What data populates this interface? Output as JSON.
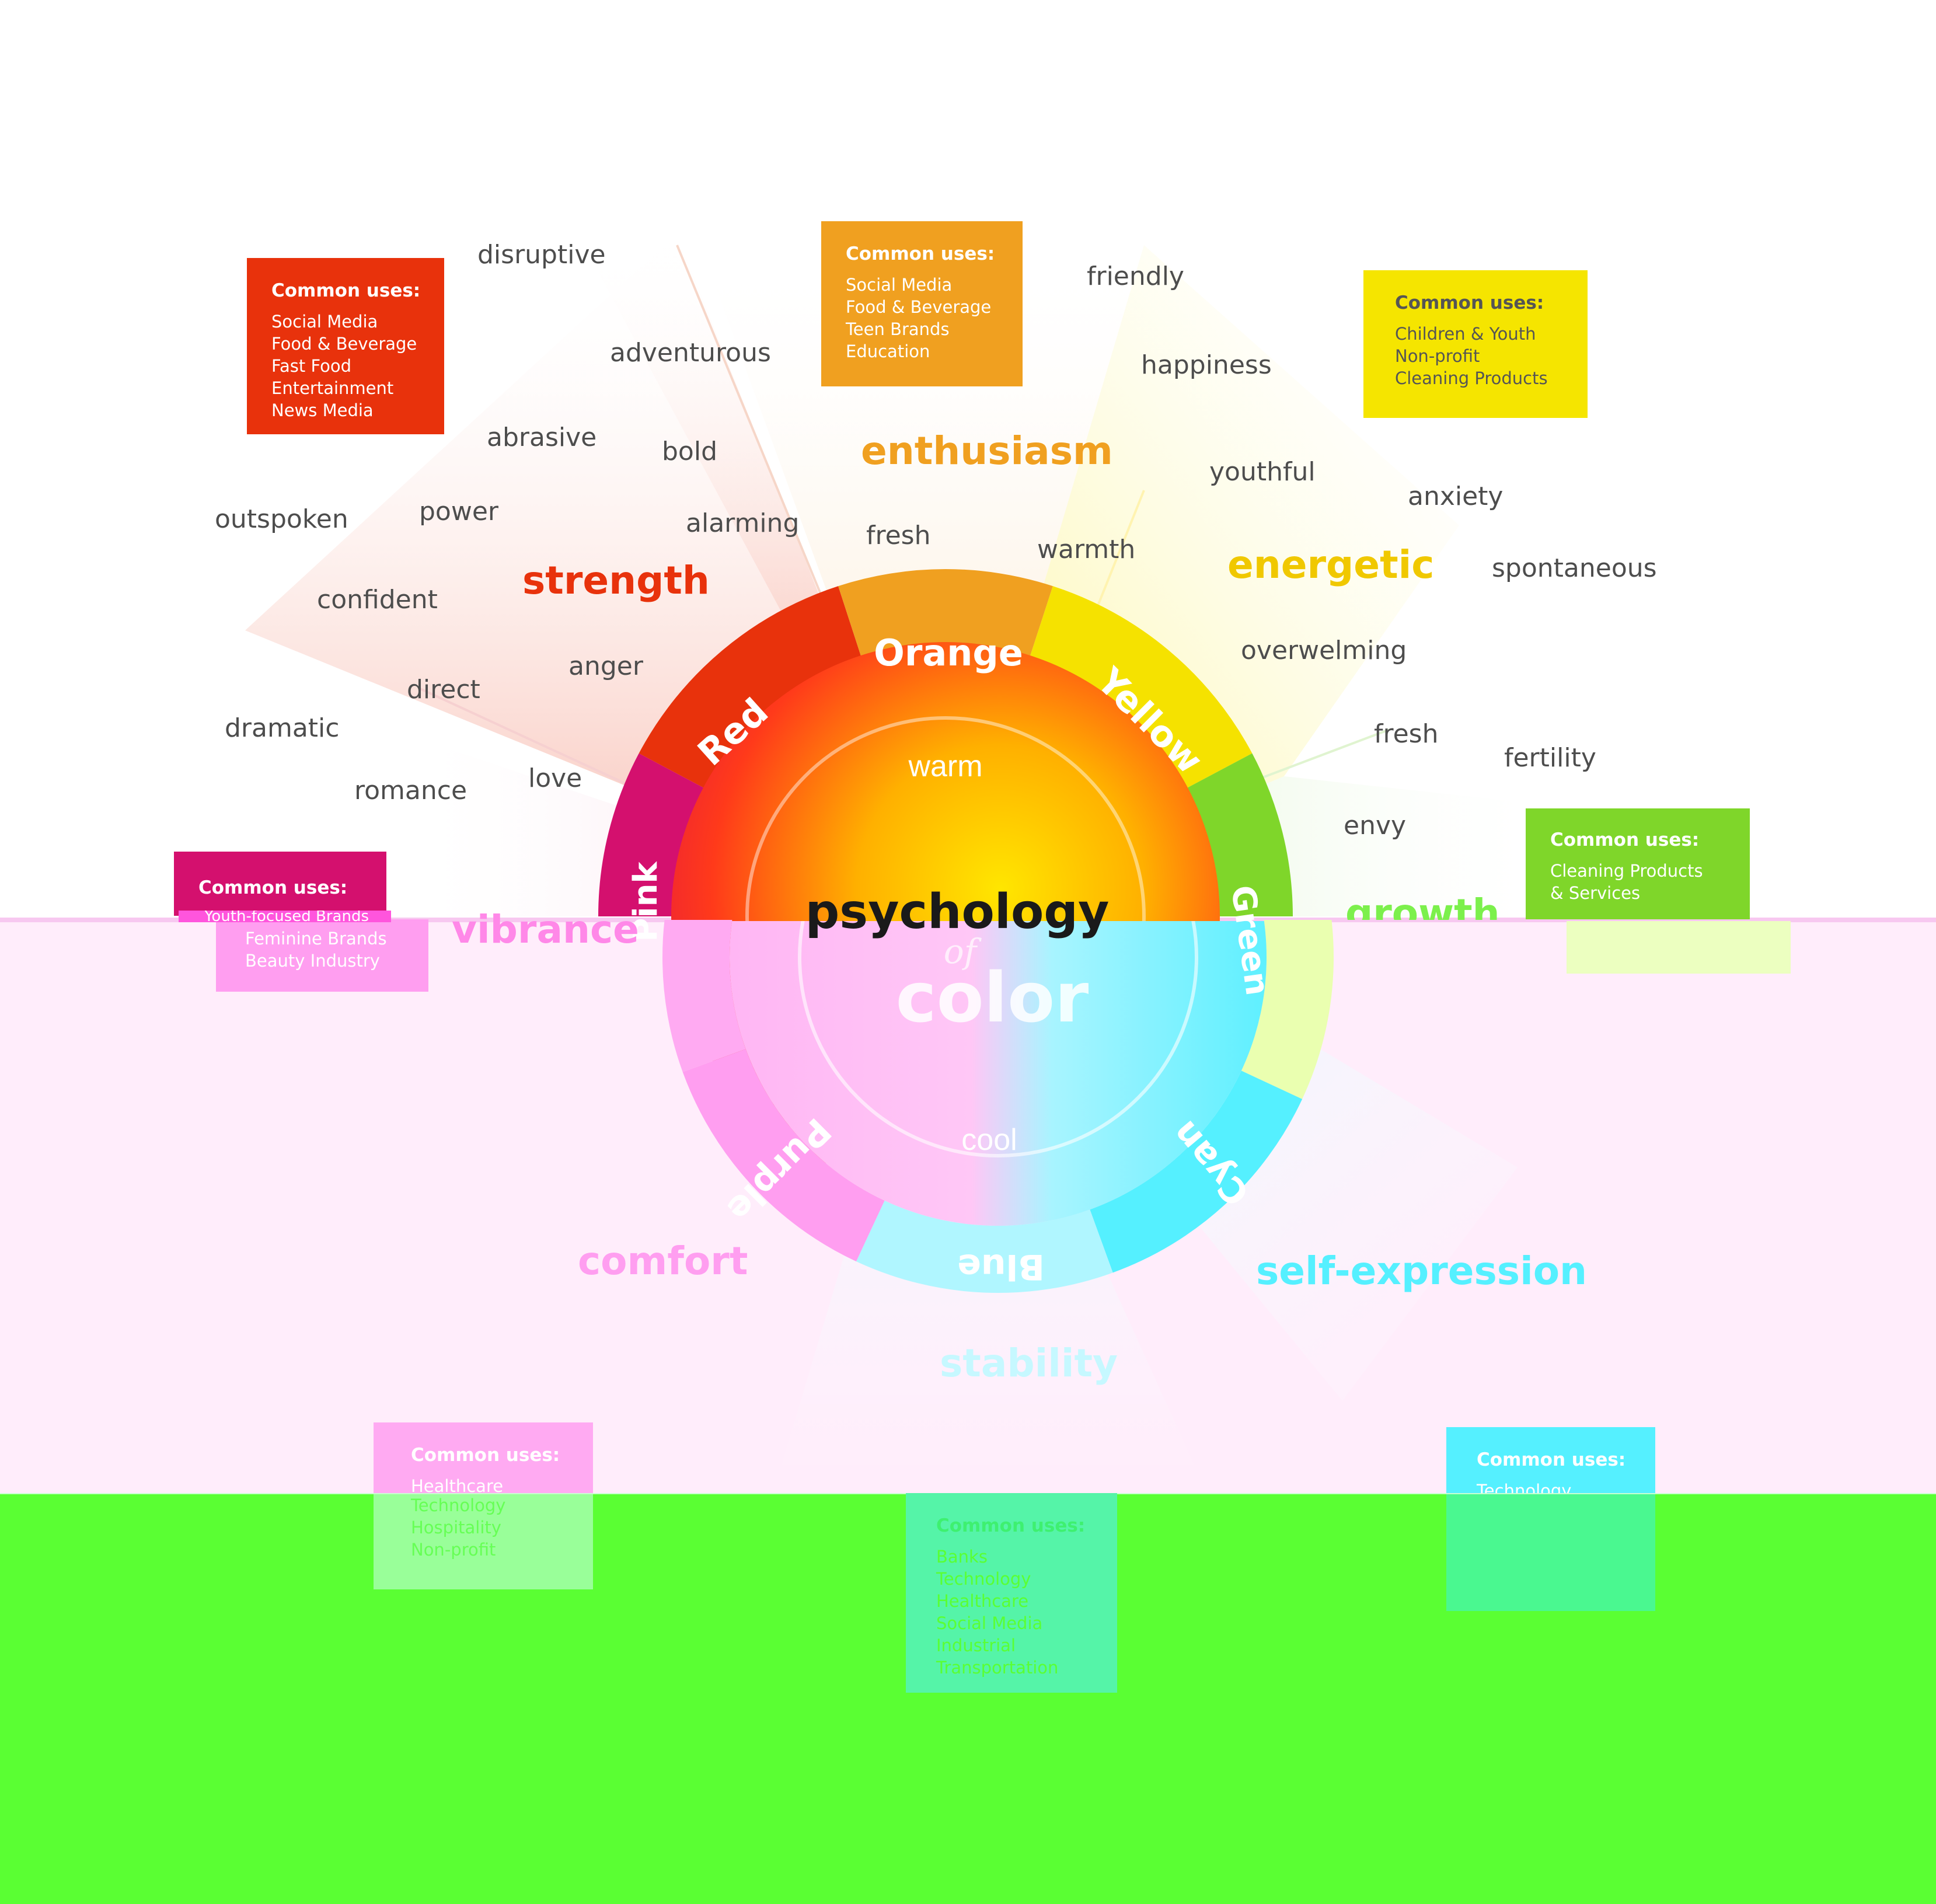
{
  "title": {
    "line1": "psychology",
    "line2": "of",
    "line3": "color"
  },
  "temperature": {
    "warm": "warm",
    "cool": "cool"
  },
  "segments": [
    {
      "label": "Pink",
      "color": "#d4106e"
    },
    {
      "label": "Red",
      "color": "#e8320c"
    },
    {
      "label": "Orange",
      "color": "#f0a020"
    },
    {
      "label": "Yellow",
      "color": "#f5e200"
    },
    {
      "label": "Green",
      "color": "#7fd62a"
    },
    {
      "label": "Cyan",
      "color": "#55f0ff"
    },
    {
      "label": "Blue",
      "color": "#b0f6ff"
    },
    {
      "label": "Purple",
      "color": "#ff9ef0"
    }
  ],
  "keywords": {
    "strength": "strength",
    "enthusiasm": "enthusiasm",
    "energetic": "energetic",
    "growth": "growth",
    "vibrance": "vibrance",
    "comfort": "comfort",
    "stability": "stability",
    "self_expression": "self-expression"
  },
  "words": {
    "disruptive": "disruptive",
    "adventurous": "adventurous",
    "abrasive": "abrasive",
    "bold": "bold",
    "outspoken": "outspoken",
    "power": "power",
    "alarming": "alarming",
    "confident": "confident",
    "anger": "anger",
    "direct": "direct",
    "dramatic": "dramatic",
    "love": "love",
    "romance": "romance",
    "friendly": "friendly",
    "happiness": "happiness",
    "fresh_orange": "fresh",
    "warmth": "warmth",
    "youthful": "youthful",
    "anxiety": "anxiety",
    "spontaneous": "spontaneous",
    "overwelming": "overwelming",
    "fresh_green": "fresh",
    "fertility": "fertility",
    "envy": "envy"
  },
  "uses": {
    "header": "Common uses:",
    "red": [
      "Social Media",
      "Food & Beverage",
      "Fast Food",
      "Entertainment",
      "News Media"
    ],
    "orange": [
      "Social Media",
      "Food & Beverage",
      "Teen Brands",
      "Education"
    ],
    "yellow": [
      "Children & Youth",
      "Non-profit",
      "Cleaning Products"
    ],
    "green": [
      "Cleaning Products",
      "& Services"
    ],
    "pink": [
      "Youth-focused Brands",
      "Feminine Brands",
      "Beauty Industry"
    ],
    "purple": [
      "Healthcare",
      "Technology",
      "Hospitality",
      "Non-profit"
    ],
    "blue": [
      "Banks",
      "Technology",
      "Healthcare",
      "Social Media",
      "Industrial",
      "Transportation"
    ],
    "cyan": [
      "Technology"
    ]
  },
  "colors": {
    "red": "#e8320c",
    "orange": "#f0a020",
    "yellow": "#f5e200",
    "green": "#7fd62a",
    "pink": "#d4106e",
    "purple_tint": "#ffaaf2",
    "cyan": "#55f0ff",
    "blue_tint": "#cdf8ff",
    "glitch_green": "#5aff33",
    "glitch_pink_band": "#ffe8fa",
    "text_gray": "#4d4d4d"
  }
}
